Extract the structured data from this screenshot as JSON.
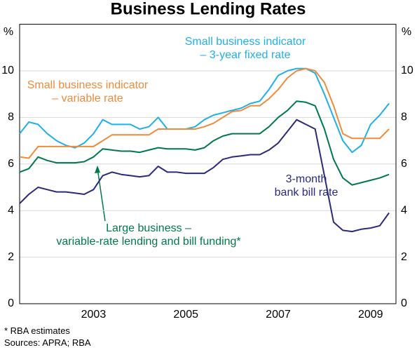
{
  "chart_data": {
    "type": "line",
    "title": "Business Lending Rates",
    "y_unit": "%",
    "x": [
      2001.9,
      2002.1,
      2002.3,
      2002.5,
      2002.7,
      2002.9,
      2003.1,
      2003.3,
      2003.5,
      2003.7,
      2003.9,
      2004.1,
      2004.3,
      2004.5,
      2004.7,
      2004.9,
      2005.1,
      2005.3,
      2005.5,
      2005.7,
      2005.9,
      2006.1,
      2006.3,
      2006.5,
      2006.7,
      2006.9,
      2007.1,
      2007.3,
      2007.5,
      2007.7,
      2007.9,
      2008.1,
      2008.3,
      2008.5,
      2008.7,
      2008.9,
      2009.1,
      2009.3,
      2009.5,
      2009.7,
      2009.9
    ],
    "xlim": [
      2001.9,
      2010.05
    ],
    "xticks": [
      {
        "value": 2003.5,
        "label": "2003"
      },
      {
        "value": 2005.5,
        "label": "2005"
      },
      {
        "value": 2007.5,
        "label": "2007"
      },
      {
        "value": 2009.5,
        "label": "2009"
      }
    ],
    "ylim": [
      0,
      12
    ],
    "yticks": [
      0,
      2,
      4,
      6,
      8,
      10
    ],
    "grid": true,
    "series": [
      {
        "name": "Small business indicator\n– 3-year fixed rate",
        "color": "#1fb0e8",
        "values": [
          7.3,
          7.8,
          7.7,
          7.3,
          7.0,
          6.8,
          6.7,
          6.9,
          7.3,
          7.9,
          7.7,
          7.7,
          7.7,
          7.5,
          7.6,
          8.0,
          7.5,
          7.5,
          7.5,
          7.6,
          7.9,
          8.1,
          8.2,
          8.3,
          8.4,
          8.6,
          8.7,
          9.2,
          9.8,
          10.0,
          10.1,
          10.1,
          9.9,
          9.0,
          8.0,
          7.0,
          6.5,
          6.8,
          7.7,
          8.1,
          8.6
        ]
      },
      {
        "name": "Small business indicator\n– variable rate",
        "color": "#f08a3c",
        "values": [
          6.3,
          6.25,
          6.75,
          6.75,
          6.75,
          6.75,
          6.75,
          6.75,
          6.75,
          7.0,
          7.25,
          7.25,
          7.25,
          7.25,
          7.25,
          7.5,
          7.5,
          7.5,
          7.5,
          7.5,
          7.6,
          7.75,
          8.0,
          8.25,
          8.3,
          8.5,
          8.5,
          8.8,
          9.2,
          9.7,
          10.0,
          10.1,
          10.0,
          9.5,
          8.5,
          7.3,
          7.1,
          7.1,
          7.1,
          7.1,
          7.5
        ]
      },
      {
        "name": "Large business –\nvariable-rate lending and bill funding*",
        "color": "#00794a",
        "values": [
          5.65,
          5.8,
          6.3,
          6.15,
          6.05,
          6.05,
          6.05,
          6.1,
          6.3,
          6.65,
          6.6,
          6.55,
          6.55,
          6.5,
          6.6,
          6.7,
          6.65,
          6.65,
          6.65,
          6.6,
          6.7,
          7.0,
          7.2,
          7.3,
          7.3,
          7.3,
          7.3,
          7.6,
          8.0,
          8.3,
          8.7,
          8.65,
          8.5,
          7.5,
          6.2,
          5.4,
          5.1,
          5.2,
          5.3,
          5.4,
          5.55
        ]
      },
      {
        "name": "3-month\nbank bill rate",
        "color": "#2b2a7a",
        "values": [
          4.3,
          4.7,
          5.0,
          4.9,
          4.8,
          4.8,
          4.75,
          4.7,
          4.9,
          5.5,
          5.65,
          5.55,
          5.5,
          5.45,
          5.5,
          5.9,
          5.65,
          5.65,
          5.6,
          5.6,
          5.6,
          5.85,
          6.2,
          6.3,
          6.35,
          6.4,
          6.4,
          6.6,
          6.9,
          7.4,
          7.9,
          7.7,
          7.5,
          5.5,
          3.5,
          3.15,
          3.1,
          3.2,
          3.25,
          3.35,
          3.9
        ]
      }
    ],
    "notes": [
      "*    RBA estimates",
      "Sources: APRA; RBA"
    ]
  }
}
